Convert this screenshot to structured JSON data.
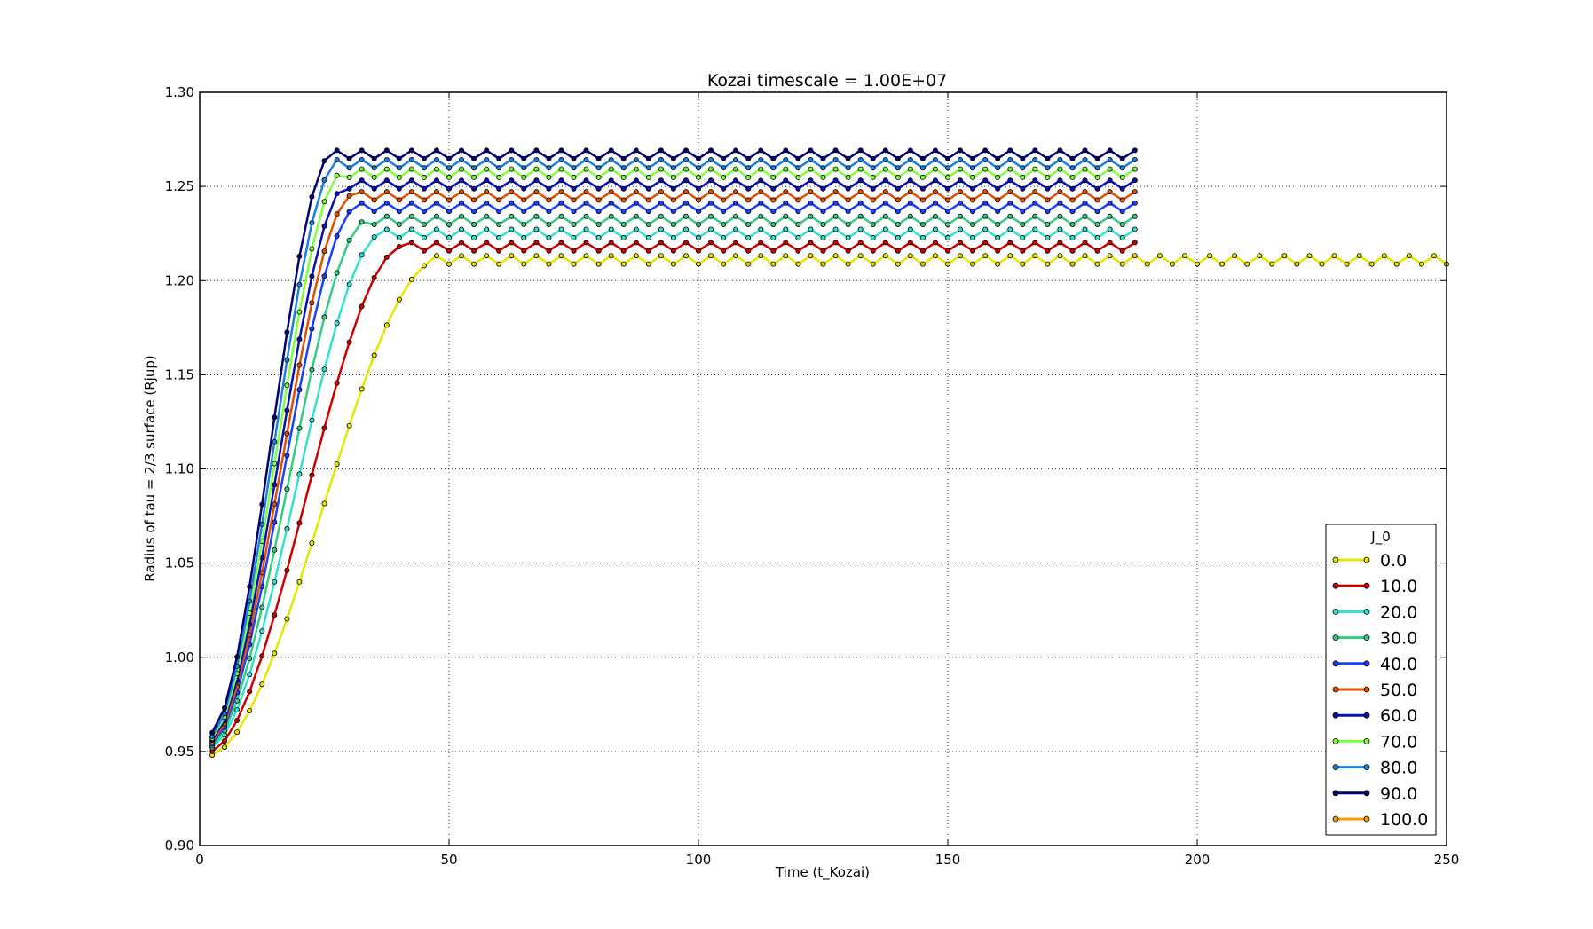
{
  "chart_data": {
    "type": "line",
    "title": "Kozai timescale = 1.00E+07",
    "xlabel": "Time (t_Kozai)",
    "ylabel": "Radius of tau = 2/3 surface (Rjup)",
    "xlim": [
      0,
      250
    ],
    "ylim": [
      0.9,
      1.3
    ],
    "xticks": [
      "0",
      "50",
      "100",
      "150",
      "200",
      "250"
    ],
    "yticks": [
      "0.90",
      "0.95",
      "1.00",
      "1.05",
      "1.10",
      "1.15",
      "1.20",
      "1.25",
      "1.30"
    ],
    "grid": true,
    "legend_title": "J_0",
    "legend_position": "lower-right",
    "series": [
      {
        "name": "0.0",
        "color": "#e6e600",
        "start": 0.948,
        "plateau": 1.211,
        "rise_end": 47,
        "end": 250
      },
      {
        "name": "10.0",
        "color": "#cc0000",
        "start": 0.95,
        "plateau": 1.218,
        "rise_end": 40,
        "end": 188
      },
      {
        "name": "20.0",
        "color": "#33e0d0",
        "start": 0.952,
        "plateau": 1.225,
        "rise_end": 36,
        "end": 188
      },
      {
        "name": "30.0",
        "color": "#33cc80",
        "start": 0.953,
        "plateau": 1.232,
        "rise_end": 33,
        "end": 188
      },
      {
        "name": "40.0",
        "color": "#1a40ff",
        "start": 0.954,
        "plateau": 1.239,
        "rise_end": 31,
        "end": 188
      },
      {
        "name": "50.0",
        "color": "#e05000",
        "start": 0.955,
        "plateau": 1.245,
        "rise_end": 30,
        "end": 188
      },
      {
        "name": "60.0",
        "color": "#0a10b0",
        "start": 0.956,
        "plateau": 1.251,
        "rise_end": 29,
        "end": 188
      },
      {
        "name": "70.0",
        "color": "#80ff40",
        "start": 0.957,
        "plateau": 1.257,
        "rise_end": 28,
        "end": 188
      },
      {
        "name": "80.0",
        "color": "#1a80e0",
        "start": 0.958,
        "plateau": 1.262,
        "rise_end": 27,
        "end": 188
      },
      {
        "name": "90.0",
        "color": "#000070",
        "start": 0.96,
        "plateau": 1.267,
        "rise_end": 26,
        "end": 188
      },
      {
        "name": "100.0",
        "color": "#f0a000",
        "start": 0.947,
        "plateau": null,
        "rise_end": null,
        "end": null
      }
    ],
    "oscillation_amplitude": 0.0022,
    "sample_spacing": 2.5,
    "x_start": 2.5
  }
}
